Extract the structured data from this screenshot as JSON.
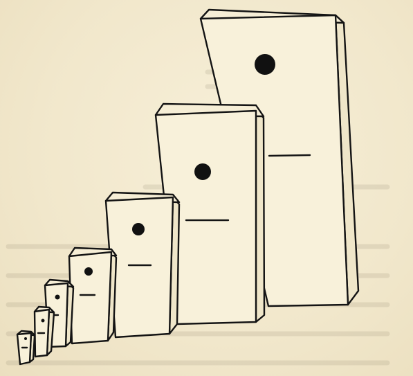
{
  "illustration": {
    "description_visible_text": "",
    "domino_count": 8,
    "colors": {
      "paper": "#f4ecd3",
      "ink": "#141414"
    }
  }
}
